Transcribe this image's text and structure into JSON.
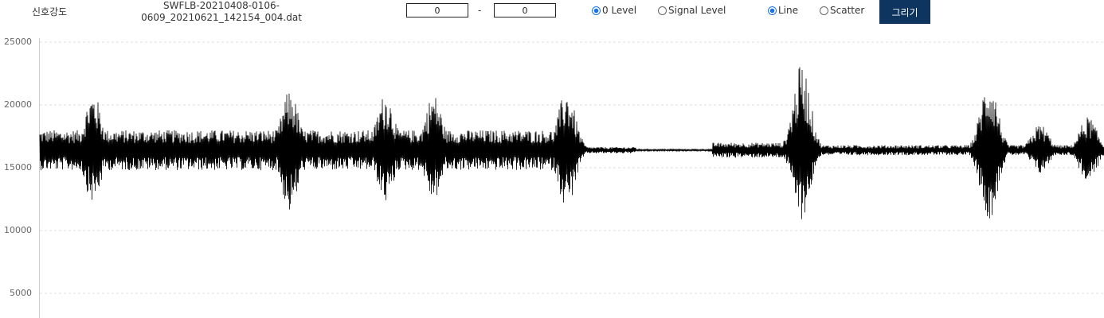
{
  "toolbar": {
    "signal_label": "신호강도",
    "filename_line1": "SWFLB-20210408-0106-",
    "filename_line2": "0609_20210621_142154_004.dat",
    "range_from": "0",
    "range_sep": "-",
    "range_to": "0",
    "level_options": [
      {
        "label": "0 Level",
        "selected": true
      },
      {
        "label": "Signal Level",
        "selected": false
      }
    ],
    "type_options": [
      {
        "label": "Line",
        "selected": true
      },
      {
        "label": "Scatter",
        "selected": false
      }
    ],
    "draw_button": "그리기",
    "accent_color": "#0d3560"
  },
  "chart_data": {
    "type": "line",
    "title": "",
    "xlabel": "",
    "ylabel": "",
    "ylim": [
      3000,
      25000
    ],
    "yticks": [
      "25000",
      "20000",
      "15000",
      "10000",
      "5000"
    ],
    "yticks_values": [
      25000,
      20000,
      15000,
      10000,
      5000
    ],
    "grid": true,
    "series_color": "#000000",
    "baseline": 16400,
    "bursts": [
      {
        "x": 0.05,
        "peak": 21000,
        "trough": 12200
      },
      {
        "x": 0.235,
        "peak": 21200,
        "trough": 11400
      },
      {
        "x": 0.325,
        "peak": 21000,
        "trough": 12200
      },
      {
        "x": 0.37,
        "peak": 20900,
        "trough": 12400
      },
      {
        "x": 0.495,
        "peak": 21200,
        "trough": 11800
      },
      {
        "x": 0.716,
        "peak": 23300,
        "trough": 10900
      },
      {
        "x": 0.892,
        "peak": 22200,
        "trough": 10900
      },
      {
        "x": 0.94,
        "peak": 18500,
        "trough": 14500
      },
      {
        "x": 0.985,
        "peak": 19100,
        "trough": 13800
      }
    ],
    "segments": [
      {
        "from": 0.0,
        "to": 0.502,
        "amp": 1600
      },
      {
        "from": 0.502,
        "to": 0.56,
        "amp": 250
      },
      {
        "from": 0.56,
        "to": 0.632,
        "amp": 70
      },
      {
        "from": 0.632,
        "to": 0.7,
        "amp": 600
      },
      {
        "from": 0.7,
        "to": 1.0,
        "amp": 400
      }
    ]
  }
}
